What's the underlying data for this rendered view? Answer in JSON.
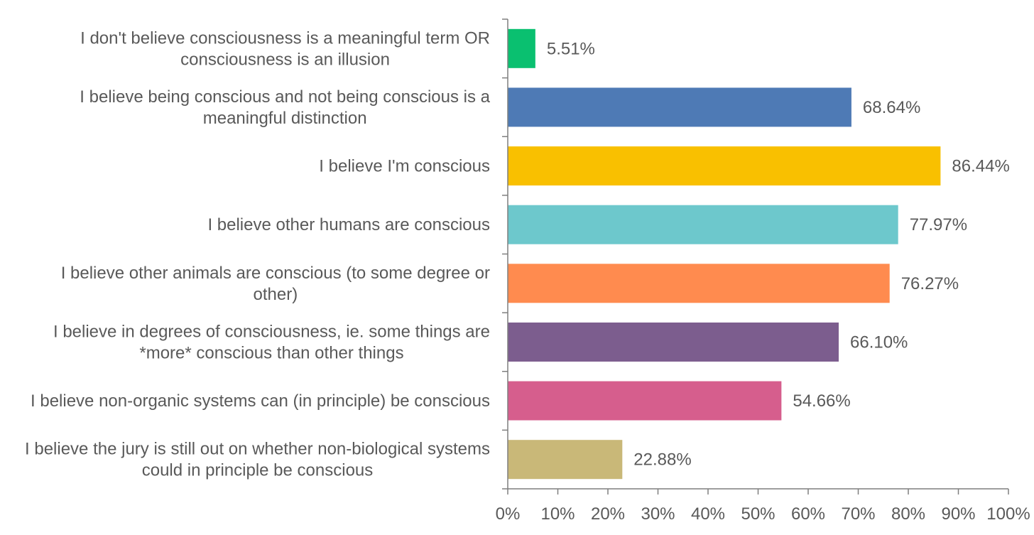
{
  "chart_data": {
    "type": "bar",
    "orientation": "horizontal",
    "title": "",
    "xlabel": "",
    "ylabel": "",
    "xlim": [
      0,
      100
    ],
    "grid": false,
    "legend": "none",
    "categories": [
      [
        "I don't believe consciousness is a meaningful term OR",
        "consciousness is an illusion"
      ],
      [
        "I believe being conscious and not being conscious is a",
        "meaningful distinction"
      ],
      [
        "I believe I'm conscious"
      ],
      [
        "I believe other humans are conscious"
      ],
      [
        "I believe other animals are conscious (to some degree or",
        "other)"
      ],
      [
        "I believe in degrees of consciousness, ie. some things are",
        "*more* conscious than other things"
      ],
      [
        "I believe non-organic systems can (in principle) be conscious"
      ],
      [
        "I believe the jury is still out on whether non-biological systems",
        "could in principle be conscious"
      ]
    ],
    "values": [
      5.51,
      68.64,
      86.44,
      77.97,
      76.27,
      66.1,
      54.66,
      22.88
    ],
    "value_labels": [
      "5.51%",
      "68.64%",
      "86.44%",
      "77.97%",
      "76.27%",
      "66.10%",
      "54.66%",
      "22.88%"
    ],
    "colors": [
      "#0ac070",
      "#4e7ab5",
      "#f9c000",
      "#6dc8cc",
      "#ff8b4f",
      "#7c5d8e",
      "#d65e8d",
      "#c9b878"
    ],
    "x_ticks": [
      0,
      10,
      20,
      30,
      40,
      50,
      60,
      70,
      80,
      90,
      100
    ],
    "x_tick_labels": [
      "0%",
      "10%",
      "20%",
      "30%",
      "40%",
      "50%",
      "60%",
      "70%",
      "80%",
      "90%",
      "100%"
    ]
  }
}
